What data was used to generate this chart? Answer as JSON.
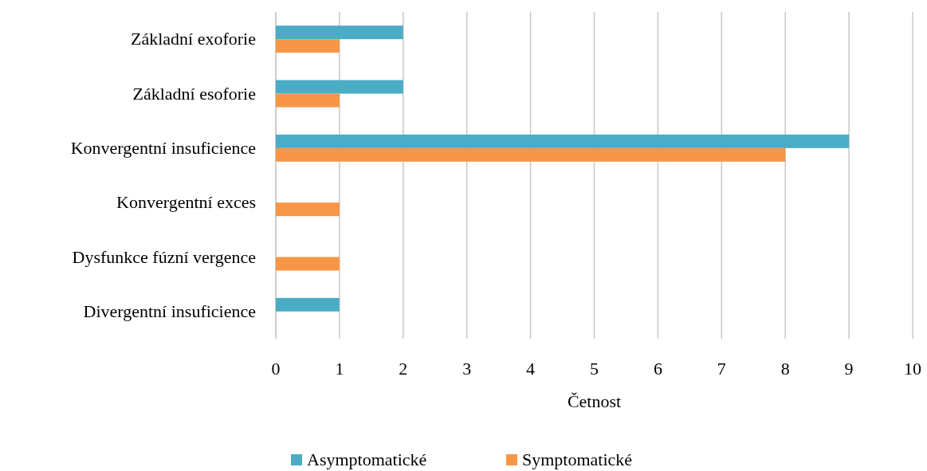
{
  "chart_data": {
    "type": "bar",
    "orientation": "horizontal",
    "xlabel": "Četnost",
    "categories": [
      "Základní exoforie",
      "Základní esoforie",
      "Konvergentní insuficience",
      "Konvergentní exces",
      "Dysfunkce fúzní vergence",
      "Divergentní insuficience"
    ],
    "series": [
      {
        "name": "Asymptomatické",
        "color": "#4bacc6",
        "values": [
          2,
          2,
          9,
          0,
          0,
          1
        ]
      },
      {
        "name": "Symptomatické",
        "color": "#f79646",
        "values": [
          1,
          1,
          8,
          1,
          1,
          0
        ]
      }
    ],
    "xlim": [
      0,
      10
    ],
    "xticks": [
      0,
      1,
      2,
      3,
      4,
      5,
      6,
      7,
      8,
      9,
      10
    ],
    "grid": "x",
    "legend": "bottom"
  }
}
